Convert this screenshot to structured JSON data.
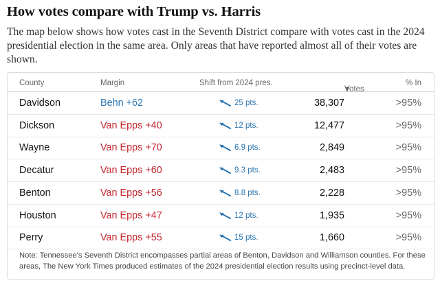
{
  "title": "How votes compare with Trump vs. Harris",
  "description": "The map below shows how votes cast in the Seventh District compare with votes cast in the 2024 presidential election in the same area. Only areas that have reported almost all of their votes are shown.",
  "table": {
    "headers": {
      "county": "County",
      "margin": "Margin",
      "shift": "Shift from 2024 pres.",
      "votes": "Votes",
      "votes_sort_icon": "sort-down-triangle-icon",
      "pct_in": "% In"
    },
    "rows": [
      {
        "county": "Davidson",
        "margin": "Behn +62",
        "party": "dem",
        "shift": "25 pts.",
        "votes": "38,307",
        "pct_in": ">95%"
      },
      {
        "county": "Dickson",
        "margin": "Van Epps +40",
        "party": "rep",
        "shift": "12 pts.",
        "votes": "12,477",
        "pct_in": ">95%"
      },
      {
        "county": "Wayne",
        "margin": "Van Epps +70",
        "party": "rep",
        "shift": "6.9 pts.",
        "votes": "2,849",
        "pct_in": ">95%"
      },
      {
        "county": "Decatur",
        "margin": "Van Epps +60",
        "party": "rep",
        "shift": "9.3 pts.",
        "votes": "2,483",
        "pct_in": ">95%"
      },
      {
        "county": "Benton",
        "margin": "Van Epps +56",
        "party": "rep",
        "shift": "8.8 pts.",
        "votes": "2,228",
        "pct_in": ">95%"
      },
      {
        "county": "Houston",
        "margin": "Van Epps +47",
        "party": "rep",
        "shift": "12 pts.",
        "votes": "1,935",
        "pct_in": ">95%"
      },
      {
        "county": "Perry",
        "margin": "Van Epps +55",
        "party": "rep",
        "shift": "15 pts.",
        "votes": "1,660",
        "pct_in": ">95%"
      }
    ],
    "note": "Note: Tennessee's Seventh District encompasses partial areas of Benton, Davidson and Williamson counties. For these areas, The New York Times produced estimates of the 2024 presidential election results using precinct-level data."
  },
  "colors": {
    "dem": "#2a74b0",
    "rep": "#c2242c",
    "shift_arrow": "#2a74b0"
  }
}
